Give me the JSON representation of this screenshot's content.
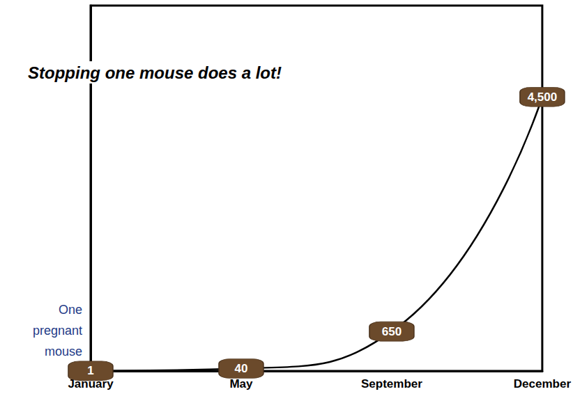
{
  "chart_data": {
    "type": "line",
    "title": "Stopping one mouse does a lot!",
    "annotation": "One pregnant mouse",
    "categories": [
      "January",
      "May",
      "September",
      "December"
    ],
    "values": [
      1,
      40,
      650,
      4500
    ],
    "value_labels": [
      "1",
      "40",
      "650",
      "4,500"
    ],
    "color": "#000000",
    "ylim": [
      0,
      6000
    ],
    "tick_labels": "x",
    "data_labels": true,
    "grid": false,
    "marker": "roundRect"
  }
}
